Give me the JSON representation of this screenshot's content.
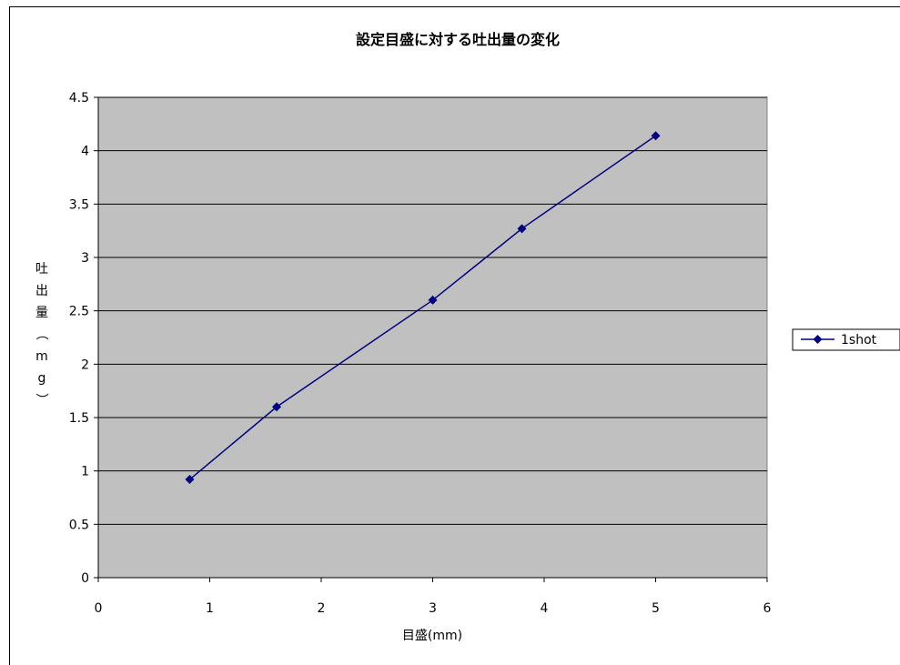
{
  "chart_data": {
    "type": "line",
    "title": "設定目盛に対する吐出量の変化",
    "xlabel": "目盛(mm)",
    "ylabel": "吐出量（mg）",
    "xlim": [
      0,
      6
    ],
    "ylim": [
      0,
      4.5
    ],
    "x_ticks": [
      "0",
      "1",
      "2",
      "3",
      "4",
      "5",
      "6"
    ],
    "y_ticks": [
      "0",
      "0.5",
      "1",
      "1.5",
      "2",
      "2.5",
      "3",
      "3.5",
      "4",
      "4.5"
    ],
    "grid": "horizontal",
    "legend": "right",
    "plot_background": "#c0c0c0",
    "series": [
      {
        "name": "1shot",
        "color": "#000080",
        "marker": "diamond",
        "x": [
          0.82,
          1.6,
          3.0,
          3.8,
          5.0
        ],
        "y": [
          0.92,
          1.6,
          2.6,
          3.27,
          4.14
        ]
      }
    ]
  }
}
